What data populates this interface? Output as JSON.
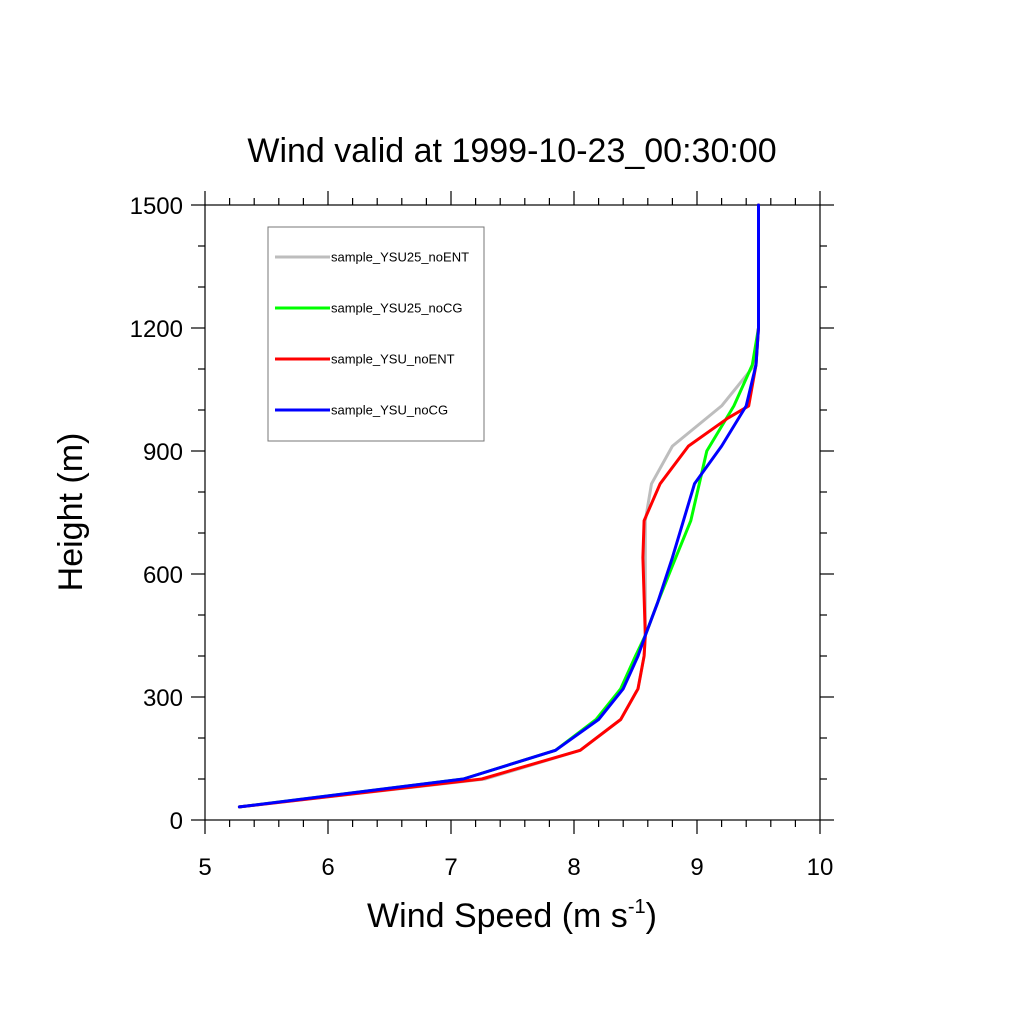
{
  "chart_data": {
    "type": "line",
    "title": "Wind valid at 1999-10-23_00:30:00",
    "xlabel": "Wind Speed (m s",
    "xlabel_superscript": "-1",
    "xlabel_suffix": ")",
    "ylabel": "Height (m)",
    "xlim": [
      5,
      10
    ],
    "ylim": [
      0,
      1500
    ],
    "x_ticks": [
      5,
      6,
      7,
      8,
      9,
      10
    ],
    "x_tick_labels": [
      "5",
      "6",
      "7",
      "8",
      "9",
      "10"
    ],
    "x_minor_step": 0.2,
    "y_ticks": [
      0,
      300,
      600,
      900,
      1200,
      1500
    ],
    "y_tick_labels": [
      "0",
      "300",
      "600",
      "900",
      "1200",
      "1500"
    ],
    "y_minor_step": 100,
    "grid": false,
    "legend_position": "top-left",
    "series": [
      {
        "name": "sample_YSU25_noENT",
        "color": "#bdbdbd",
        "points": [
          [
            5.28,
            32
          ],
          [
            7.28,
            100
          ],
          [
            8.05,
            170
          ],
          [
            8.38,
            245
          ],
          [
            8.52,
            320
          ],
          [
            8.57,
            400
          ],
          [
            8.58,
            450
          ],
          [
            8.58,
            600
          ],
          [
            8.58,
            730
          ],
          [
            8.63,
            820
          ],
          [
            8.8,
            912
          ],
          [
            9.2,
            1010
          ],
          [
            9.47,
            1110
          ],
          [
            9.5,
            1200
          ],
          [
            9.5,
            1500
          ]
        ]
      },
      {
        "name": "sample_YSU25_noCG",
        "color": "#00ff00",
        "points": [
          [
            5.28,
            32
          ],
          [
            7.1,
            100
          ],
          [
            7.85,
            170
          ],
          [
            8.18,
            245
          ],
          [
            8.38,
            320
          ],
          [
            8.5,
            400
          ],
          [
            8.58,
            450
          ],
          [
            8.68,
            530
          ],
          [
            8.8,
            620
          ],
          [
            8.95,
            730
          ],
          [
            9.08,
            900
          ],
          [
            9.3,
            1010
          ],
          [
            9.45,
            1110
          ],
          [
            9.5,
            1200
          ],
          [
            9.5,
            1500
          ]
        ]
      },
      {
        "name": "sample_YSU_noENT",
        "color": "#ff0000",
        "points": [
          [
            5.28,
            32
          ],
          [
            7.25,
            100
          ],
          [
            8.05,
            170
          ],
          [
            8.38,
            245
          ],
          [
            8.52,
            320
          ],
          [
            8.57,
            400
          ],
          [
            8.58,
            450
          ],
          [
            8.56,
            640
          ],
          [
            8.57,
            730
          ],
          [
            8.7,
            820
          ],
          [
            8.93,
            912
          ],
          [
            9.25,
            980
          ],
          [
            9.42,
            1010
          ],
          [
            9.48,
            1110
          ],
          [
            9.5,
            1200
          ],
          [
            9.5,
            1500
          ]
        ]
      },
      {
        "name": "sample_YSU_noCG",
        "color": "#0000ff",
        "points": [
          [
            5.28,
            32
          ],
          [
            7.1,
            100
          ],
          [
            7.85,
            170
          ],
          [
            8.2,
            245
          ],
          [
            8.4,
            320
          ],
          [
            8.52,
            400
          ],
          [
            8.58,
            450
          ],
          [
            8.68,
            530
          ],
          [
            8.8,
            640
          ],
          [
            8.98,
            820
          ],
          [
            9.2,
            912
          ],
          [
            9.4,
            1010
          ],
          [
            9.48,
            1110
          ],
          [
            9.5,
            1200
          ],
          [
            9.5,
            1500
          ]
        ]
      }
    ]
  }
}
